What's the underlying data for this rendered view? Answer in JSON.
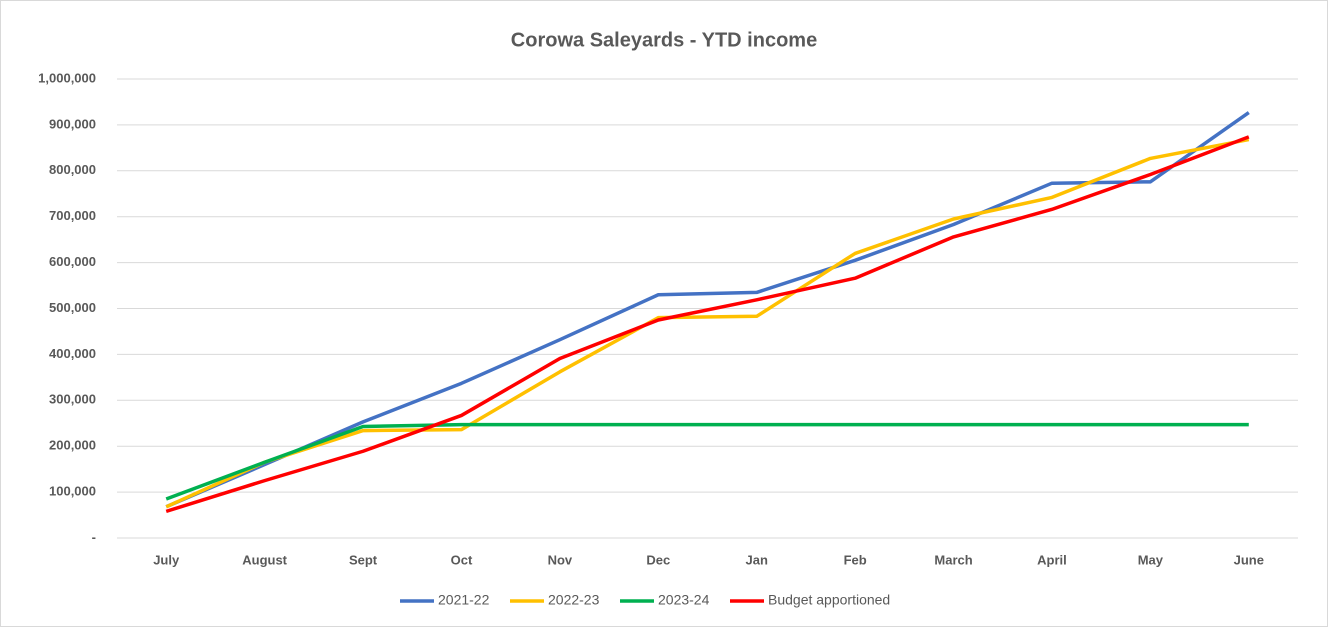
{
  "chart_data": {
    "type": "line",
    "title": "Corowa Saleyards - YTD income",
    "categories": [
      "July",
      "August",
      "Sept",
      "Oct",
      "Nov",
      "Dec",
      "Jan",
      "Feb",
      "March",
      "April",
      "May",
      "June"
    ],
    "series": [
      {
        "name": "2021-22",
        "color": "#4472c4",
        "values": [
          68000,
          160000,
          253000,
          337000,
          432000,
          530000,
          535000,
          605000,
          683000,
          773000,
          776000,
          927000
        ]
      },
      {
        "name": "2022-23",
        "color": "#ffc000",
        "values": [
          68000,
          165000,
          234000,
          236000,
          362000,
          480000,
          483000,
          620000,
          695000,
          742000,
          827000,
          868000
        ]
      },
      {
        "name": "2023-24",
        "color": "#00b050",
        "values": [
          85000,
          165000,
          243000,
          247000,
          247000,
          247000,
          247000,
          247000,
          247000,
          247000,
          247000,
          247000
        ]
      },
      {
        "name": "Budget apportioned",
        "color": "#ff0000",
        "values": [
          58000,
          125000,
          189000,
          267000,
          391000,
          475000,
          519000,
          566000,
          656000,
          716000,
          792000,
          874000
        ]
      }
    ],
    "ylim": [
      0,
      1000000
    ],
    "yticks": [
      {
        "value": 0,
        "label": "-"
      },
      {
        "value": 100000,
        "label": "100,000"
      },
      {
        "value": 200000,
        "label": "200,000"
      },
      {
        "value": 300000,
        "label": "300,000"
      },
      {
        "value": 400000,
        "label": "400,000"
      },
      {
        "value": 500000,
        "label": "500,000"
      },
      {
        "value": 600000,
        "label": "600,000"
      },
      {
        "value": 700000,
        "label": "700,000"
      },
      {
        "value": 800000,
        "label": "800,000"
      },
      {
        "value": 900000,
        "label": "900,000"
      },
      {
        "value": 1000000,
        "label": "1,000,000"
      }
    ],
    "grid": true,
    "legend": "bottom"
  }
}
